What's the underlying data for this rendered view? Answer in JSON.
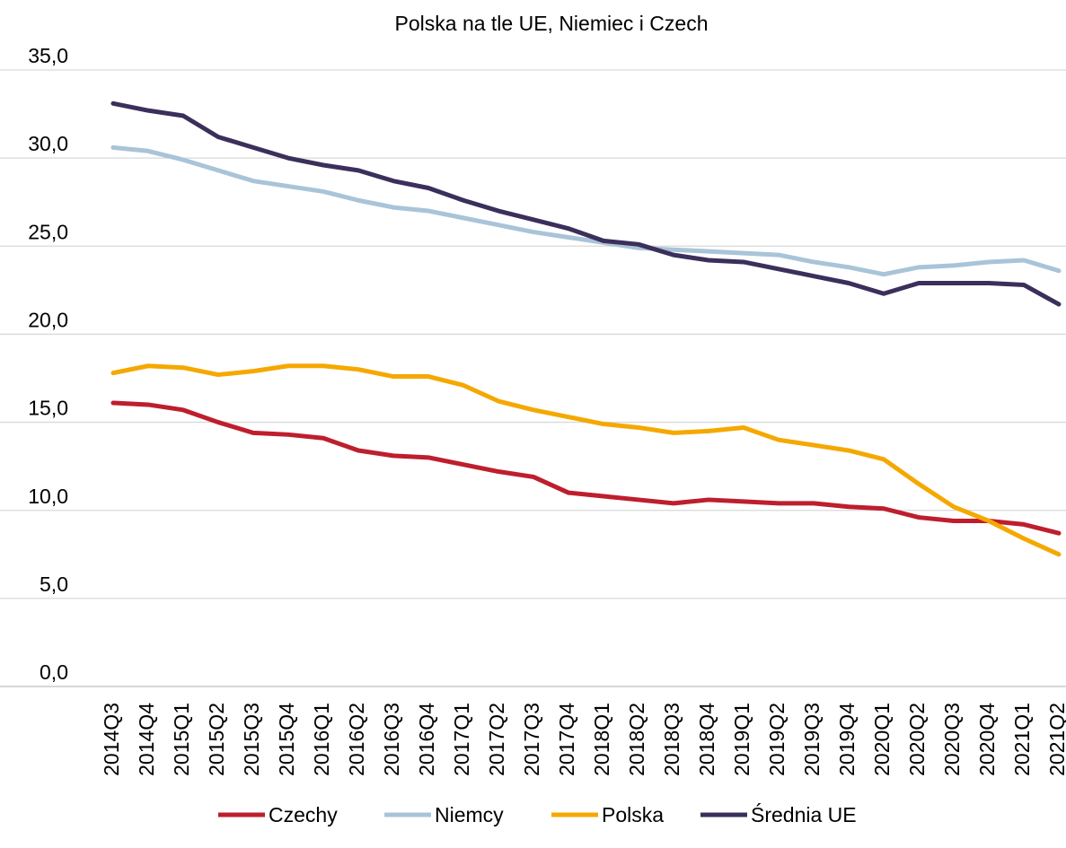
{
  "chart_data": {
    "type": "line",
    "title": "Polska na tle UE, Niemiec i Czech",
    "categories": [
      "2014Q3",
      "2014Q4",
      "2015Q1",
      "2015Q2",
      "2015Q3",
      "2015Q4",
      "2016Q1",
      "2016Q2",
      "2016Q3",
      "2016Q4",
      "2017Q1",
      "2017Q2",
      "2017Q3",
      "2017Q4",
      "2018Q1",
      "2018Q2",
      "2018Q3",
      "2018Q4",
      "2019Q1",
      "2019Q2",
      "2019Q3",
      "2019Q4",
      "2020Q1",
      "2020Q2",
      "2020Q3",
      "2020Q4",
      "2021Q1",
      "2021Q2"
    ],
    "series": [
      {
        "name": "Czechy",
        "color": "#be1e2d",
        "values": [
          16.1,
          16.0,
          15.7,
          15.0,
          14.4,
          14.3,
          14.1,
          13.4,
          13.1,
          13.0,
          12.6,
          12.2,
          11.9,
          11.0,
          10.8,
          10.6,
          10.4,
          10.6,
          10.5,
          10.4,
          10.4,
          10.2,
          10.1,
          9.6,
          9.4,
          9.4,
          9.2,
          8.7
        ]
      },
      {
        "name": "Niemcy",
        "color": "#a9c4d8",
        "values": [
          30.6,
          30.4,
          29.9,
          29.3,
          28.7,
          28.4,
          28.1,
          27.6,
          27.2,
          27.0,
          26.6,
          26.2,
          25.8,
          25.5,
          25.2,
          24.9,
          24.8,
          24.7,
          24.6,
          24.5,
          24.1,
          23.8,
          23.4,
          23.8,
          23.9,
          24.1,
          24.2,
          23.6
        ]
      },
      {
        "name": "Polska",
        "color": "#f5a800",
        "values": [
          17.8,
          18.2,
          18.1,
          17.7,
          17.9,
          18.2,
          18.2,
          18.0,
          17.6,
          17.6,
          17.1,
          16.2,
          15.7,
          15.3,
          14.9,
          14.7,
          14.4,
          14.5,
          14.7,
          14.0,
          13.7,
          13.4,
          12.9,
          11.5,
          10.2,
          9.4,
          8.4,
          7.5
        ]
      },
      {
        "name": "Średnia UE",
        "color": "#3b2f5b",
        "values": [
          33.1,
          32.7,
          32.4,
          31.2,
          30.6,
          30.0,
          29.6,
          29.3,
          28.7,
          28.3,
          27.6,
          27.0,
          26.5,
          26.0,
          25.3,
          25.1,
          24.5,
          24.2,
          24.1,
          23.7,
          23.3,
          22.9,
          22.3,
          22.9,
          22.9,
          22.9,
          22.8,
          21.7
        ]
      }
    ],
    "ylim": [
      0,
      35
    ],
    "yticks": [
      {
        "value": 0,
        "label": "0,0"
      },
      {
        "value": 5,
        "label": "5,0"
      },
      {
        "value": 10,
        "label": "10,0"
      },
      {
        "value": 15,
        "label": "15,0"
      },
      {
        "value": 20,
        "label": "20,0"
      },
      {
        "value": 25,
        "label": "25,0"
      },
      {
        "value": 30,
        "label": "30,0"
      },
      {
        "value": 35,
        "label": "35,0"
      }
    ],
    "grid": true,
    "legend": "bottom"
  }
}
